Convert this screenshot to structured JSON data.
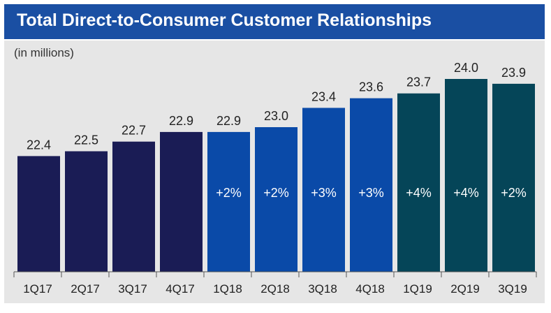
{
  "title": "Total Direct-to-Consumer Customer Relationships",
  "units_label": "(in millions)",
  "chart_data": {
    "type": "bar",
    "title": "Total Direct-to-Consumer Customer Relationships",
    "ylabel": "(in millions)",
    "categories": [
      "1Q17",
      "2Q17",
      "3Q17",
      "4Q17",
      "1Q18",
      "2Q18",
      "3Q18",
      "4Q18",
      "1Q19",
      "2Q19",
      "3Q19"
    ],
    "values": [
      22.4,
      22.5,
      22.7,
      22.9,
      22.9,
      23.0,
      23.4,
      23.6,
      23.7,
      24.0,
      23.9
    ],
    "value_labels": [
      "22.4",
      "22.5",
      "22.7",
      "22.9",
      "22.9",
      "23.0",
      "23.4",
      "23.6",
      "23.7",
      "24.0",
      "23.9"
    ],
    "growth_labels": [
      "",
      "",
      "",
      "",
      "+2%",
      "+2%",
      "+3%",
      "+3%",
      "+4%",
      "+4%",
      "+2%"
    ],
    "colors": [
      "#1a1c55",
      "#1a1c55",
      "#1a1c55",
      "#1a1c55",
      "#0a4aa8",
      "#0a4aa8",
      "#0a4aa8",
      "#0a4aa8",
      "#054558",
      "#054558",
      "#054558"
    ],
    "ylim": [
      20.0,
      24.2
    ],
    "grid": false,
    "legend": "none"
  },
  "colors": {
    "title_bar": "#1a4fa3",
    "plot_background": "#e6e6e6",
    "axis": "#555555"
  }
}
